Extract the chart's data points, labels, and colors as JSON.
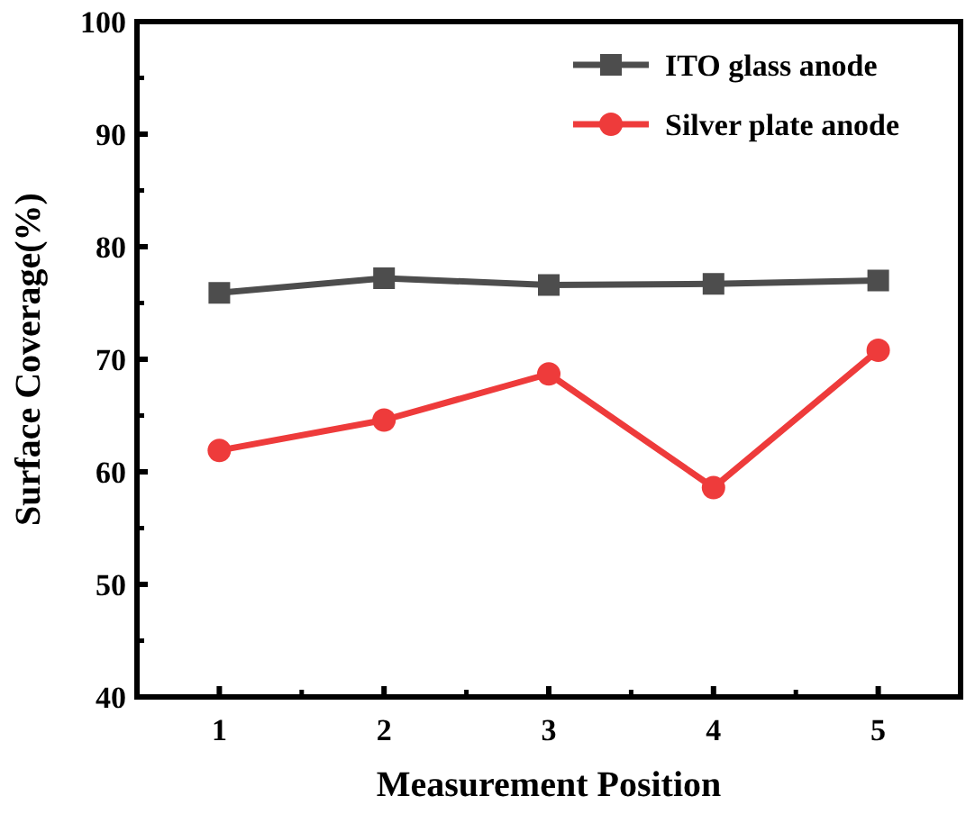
{
  "chart_data": {
    "type": "line",
    "xlabel": "Measurement Position",
    "ylabel": "Surface Coverage(%)",
    "x": [
      1,
      2,
      3,
      4,
      5
    ],
    "xlim": [
      0.5,
      5.5
    ],
    "xticks": [
      1,
      2,
      3,
      4,
      5
    ],
    "ylim": [
      40,
      100
    ],
    "yticks": [
      40,
      50,
      60,
      70,
      80,
      90,
      100
    ],
    "series": [
      {
        "name": "ITO glass anode",
        "color": "#4d4d4d",
        "marker": "square",
        "values": [
          75.9,
          77.2,
          76.6,
          76.7,
          77.0
        ]
      },
      {
        "name": "Silver plate anode",
        "color": "#ee3b3b",
        "marker": "circle",
        "values": [
          61.9,
          64.6,
          68.7,
          58.6,
          70.8
        ]
      }
    ],
    "legend": "top right",
    "grid": false,
    "line_style": "solid"
  }
}
